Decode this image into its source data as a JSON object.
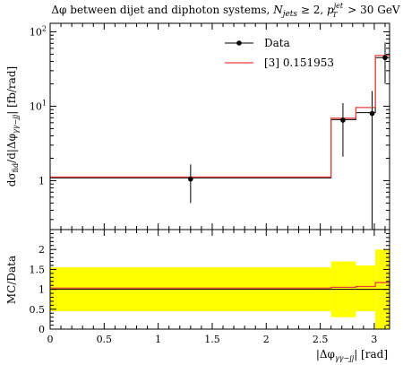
{
  "chart_data": [
    {
      "type": "line",
      "panel": "main",
      "title_parts": {
        "lead": "Δφ between dijet and diphoton systems, ",
        "njets_symbol": "N",
        "njets_sub": "jets",
        "njets_cut": " ≥ 2, ",
        "pt_symbol": "p",
        "pt_sup": "jet",
        "pt_sub": "T",
        "pt_cut": " > 30 GeV"
      },
      "ylabel": "dσ_fid / d|Δφ_γγ−jj| [fb/rad]",
      "ylabel_parts": {
        "pre": "dσ",
        "sub1": "fid",
        "mid": "/d|Δφ",
        "sub2": "γγ−jj",
        "post": "| [fb/rad]"
      },
      "yscale": "log",
      "xlim": [
        0,
        3.14159
      ],
      "ylim": [
        0.22,
        130
      ],
      "yticks": [
        1,
        10,
        100
      ],
      "ytick_labels": [
        {
          "base": "1",
          "exp": ""
        },
        {
          "base": "10",
          "exp": "1"
        },
        {
          "base": "10",
          "exp": "2"
        }
      ],
      "legend_position": "top-right",
      "series": [
        {
          "name": "Data",
          "kind": "points",
          "color": "#000000",
          "x": [
            1.3,
            2.71,
            2.98,
            3.1
          ],
          "y": [
            1.05,
            6.5,
            8.0,
            45
          ],
          "yerr_low": [
            0.5,
            2.1,
            0.22,
            20
          ],
          "yerr_high": [
            1.65,
            11.0,
            16.0,
            72
          ]
        },
        {
          "name": "[3] 0.151953",
          "kind": "step",
          "color": "#e8413a",
          "edges": [
            0,
            2.6,
            2.83,
            3.01,
            3.14159
          ],
          "values": [
            1.12,
            6.9,
            9.6,
            48
          ]
        },
        {
          "name": "",
          "kind": "step",
          "color": "#000000",
          "edges": [
            0,
            2.6,
            2.83,
            3.01,
            3.14159
          ],
          "values": [
            1.09,
            6.6,
            8.2,
            45
          ]
        }
      ]
    },
    {
      "type": "area",
      "panel": "ratio",
      "xlabel_parts": {
        "pre": "|Δφ",
        "sub": "γγ−jj",
        "post": "| [rad]"
      },
      "ylabel": "MC/Data",
      "xlim": [
        0,
        3.14159
      ],
      "ylim": [
        0,
        2.5
      ],
      "yticks": [
        0,
        0.5,
        1,
        1.5,
        2
      ],
      "ytick_labels": [
        "0",
        "0.5",
        "1",
        "1.5",
        "2"
      ],
      "xticks": [
        0,
        0.5,
        1,
        1.5,
        2,
        2.5,
        3
      ],
      "xtick_labels": [
        "0",
        "0.5",
        "1",
        "1.5",
        "2",
        "2.5",
        "3"
      ],
      "band": {
        "color": "#ffff00",
        "edges": [
          0,
          2.6,
          2.83,
          3.01,
          3.14159
        ],
        "low": [
          0.45,
          0.3,
          0.45,
          0.0,
          0.55
        ],
        "high": [
          1.55,
          1.7,
          1.6,
          2.0,
          1.5
        ]
      },
      "ratio_line": {
        "color": "#e8413a",
        "edges": [
          0,
          2.6,
          2.83,
          3.01,
          3.14159
        ],
        "values": [
          1.03,
          1.05,
          1.07,
          1.17,
          1.03
        ]
      },
      "unity_line": {
        "color": "#000000",
        "value": 1.0
      }
    }
  ]
}
